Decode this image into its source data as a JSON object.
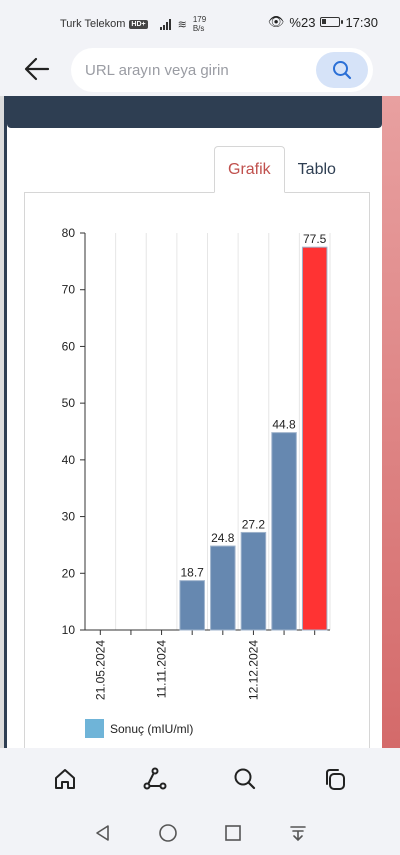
{
  "status_bar": {
    "carrier": "Turk Telekom",
    "network_badge": "HD+",
    "speed_value": "179",
    "speed_unit": "B/s",
    "battery": "%23",
    "time": "17:30"
  },
  "browser": {
    "url_placeholder": "URL arayın veya girin"
  },
  "tabs": [
    {
      "label": "Grafik",
      "active": true
    },
    {
      "label": "Tablo",
      "active": false
    }
  ],
  "chart_data": {
    "type": "bar",
    "categories": [
      "21.05.2024",
      "",
      "11.11.2024",
      "",
      "",
      "12.12.2024",
      "",
      ""
    ],
    "values": [
      null,
      null,
      null,
      18.7,
      24.8,
      27.2,
      44.8,
      77.5
    ],
    "labels": [
      "",
      "",
      "",
      "18.7",
      "24.8",
      "27.2",
      "44.8",
      "77.5"
    ],
    "colors": [
      "",
      "",
      "",
      "#6688b0",
      "#6688b0",
      "#6688b0",
      "#6688b0",
      "#ff3333"
    ],
    "ylim": [
      10,
      80
    ],
    "yticks": [
      10,
      20,
      30,
      40,
      50,
      60,
      70,
      80
    ],
    "legend": "Sonuç (mIU/ml)",
    "legend_color": "#6fb4d8",
    "grid": "vertical"
  }
}
